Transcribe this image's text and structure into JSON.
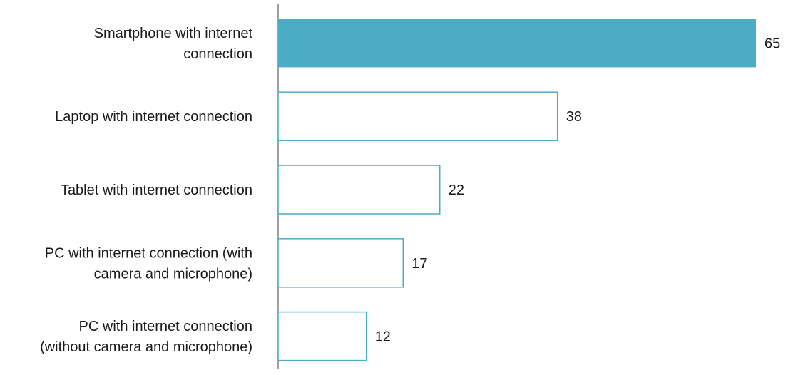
{
  "chart_data": {
    "type": "bar",
    "orientation": "horizontal",
    "categories": [
      [
        "Smartphone with internet",
        "connection"
      ],
      [
        "Laptop with internet connection"
      ],
      [
        "Tablet with internet connection"
      ],
      [
        "PC with internet connection (with",
        "camera and microphone)"
      ],
      [
        "PC with internet connection",
        "(without camera and microphone)"
      ]
    ],
    "values": [
      65,
      38,
      22,
      17,
      12
    ],
    "value_labels": [
      "65",
      "38",
      "22",
      "17",
      "12"
    ],
    "xlim": [
      0,
      65
    ],
    "grid": false,
    "legend": "none",
    "highlight_index": 0,
    "colors": {
      "accent": "#4bacc6",
      "outline": "#4bacc6",
      "fill_default": "#ffffff",
      "axis": "#808080"
    }
  }
}
